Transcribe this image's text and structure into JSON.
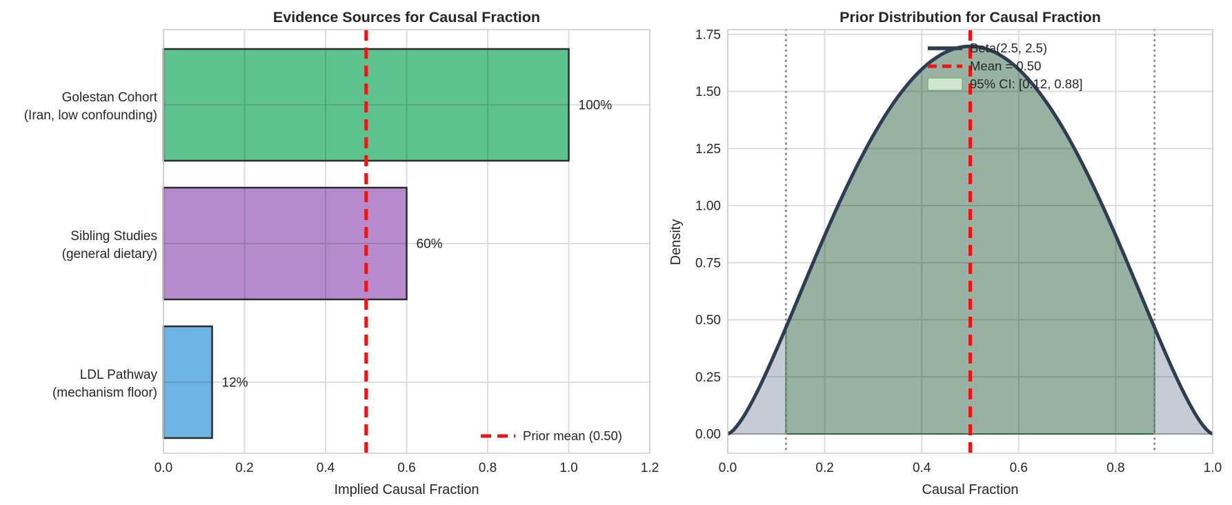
{
  "figure": {
    "background": "#ffffff",
    "text_color": "#262626",
    "grid_color": "#dcdcdc",
    "spine_color": "#cfcfcf"
  },
  "chart_data": [
    {
      "type": "bar",
      "orientation": "horizontal",
      "title": "Evidence Sources for Causal Fraction",
      "xlabel": "Implied Causal Fraction",
      "xlim": [
        0,
        1.2
      ],
      "xticks": [
        "0.0",
        "0.2",
        "0.4",
        "0.6",
        "0.8",
        "1.0",
        "1.2"
      ],
      "grid": true,
      "categories": [
        [
          "Golestan Cohort",
          "(Iran, low confounding)"
        ],
        [
          "Sibling Studies",
          "(general dietary)"
        ],
        [
          "LDL Pathway",
          "(mechanism floor)"
        ]
      ],
      "values": [
        1.0,
        0.6,
        0.12
      ],
      "bar_labels": [
        "100%",
        "60%",
        "12%"
      ],
      "bar_colors": [
        "#5dc28c",
        "#b58bce",
        "#6db3e3"
      ],
      "bar_edge_color": "#2b2b2b",
      "reference_line": {
        "value": 0.5,
        "style": "dashed",
        "color": "#f31111"
      },
      "legend": [
        {
          "label": "Prior mean (0.50)",
          "marker": "dashed-line",
          "color": "#f31111"
        }
      ],
      "legend_position": "lower right"
    },
    {
      "type": "area",
      "title": "Prior Distribution for Causal Fraction",
      "xlabel": "Causal Fraction",
      "ylabel": "Density",
      "xlim": [
        0,
        1
      ],
      "ylim": [
        0,
        1.78
      ],
      "xticks": [
        "0.0",
        "0.2",
        "0.4",
        "0.6",
        "0.8",
        "1.0"
      ],
      "yticks": [
        "0.00",
        "0.25",
        "0.50",
        "0.75",
        "1.00",
        "1.25",
        "1.50",
        "1.75"
      ],
      "grid": true,
      "distribution": {
        "name": "Beta(2.5, 2.5)",
        "alpha": 2.5,
        "beta": 2.5,
        "peak_density": 1.7,
        "line_color": "#2e3d52"
      },
      "mean": {
        "value": 0.5,
        "style": "dashed",
        "color": "#f31111"
      },
      "ci95": {
        "low": 0.12,
        "high": 0.88,
        "fill_color": "#97b2a2",
        "fill_edge_color": "#3a7a52",
        "tail_color": "#c6ccd5",
        "tail_edge_color": "#98a1ad",
        "boundary_line_color": "#8c8c8c",
        "boundary_line_style": "dotted"
      },
      "legend": [
        {
          "label": "Beta(2.5, 2.5)",
          "marker": "line",
          "color": "#2e3d52"
        },
        {
          "label": "Mean = 0.50",
          "marker": "dashed-line",
          "color": "#f31111"
        },
        {
          "label": "95% CI: [0.12, 0.88]",
          "marker": "patch",
          "fill": "#cfe5cd",
          "edge": "#7fb27f"
        }
      ],
      "legend_position": "upper right"
    }
  ]
}
